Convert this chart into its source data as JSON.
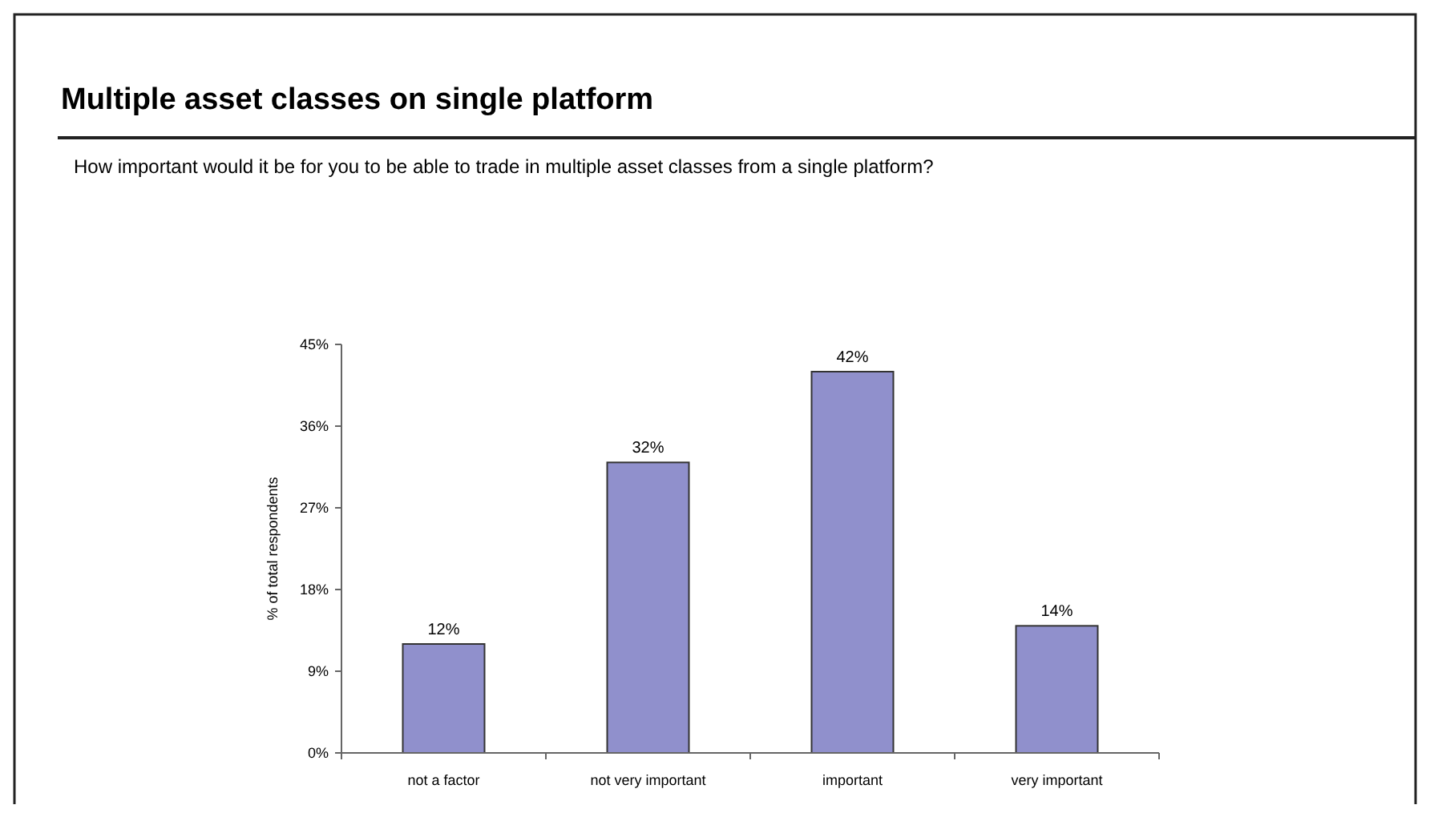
{
  "chart_data": {
    "type": "bar",
    "title": "Multiple asset classes on single platform",
    "subtitle": "How important would it be for you to be able to trade in multiple asset classes from a single platform?",
    "ylabel": "% of total respondents",
    "categories": [
      "not a factor",
      "not very important",
      "important",
      "very important"
    ],
    "values": [
      12,
      32,
      42,
      14
    ],
    "value_labels": [
      "12%",
      "32%",
      "42%",
      "14%"
    ],
    "color": "#9090cc",
    "ylim": [
      0,
      45
    ],
    "yticks": [
      {
        "value": 0,
        "label": "0%"
      },
      {
        "value": 9,
        "label": "9%"
      },
      {
        "value": 18,
        "label": "18%"
      },
      {
        "value": 27,
        "label": "27%"
      },
      {
        "value": 36,
        "label": "36%"
      },
      {
        "value": 45,
        "label": "45%"
      }
    ],
    "grid": false
  }
}
